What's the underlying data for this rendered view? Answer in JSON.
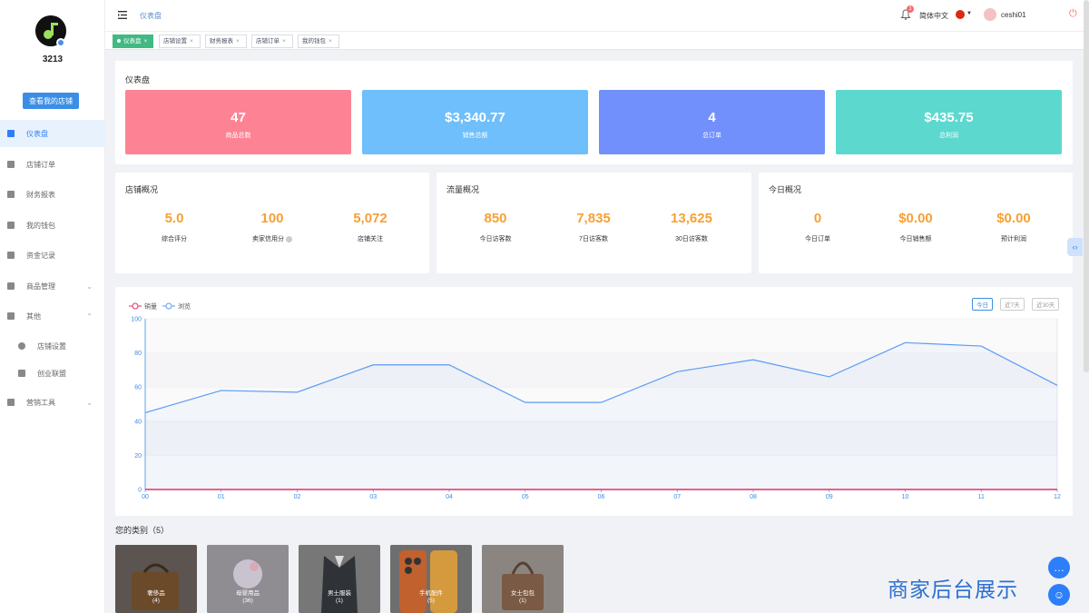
{
  "sidebar": {
    "shop_name": "3213",
    "view_shop_button": "查看我的店铺",
    "items": [
      {
        "label": "仪表盘",
        "icon": "dashboard-icon",
        "active": true
      },
      {
        "label": "店铺订单",
        "icon": "order-icon"
      },
      {
        "label": "财务报表",
        "icon": "report-icon"
      },
      {
        "label": "我的钱包",
        "icon": "wallet-icon"
      },
      {
        "label": "资金记录",
        "icon": "record-icon"
      },
      {
        "label": "商品管理",
        "icon": "goods-icon",
        "chevron": "⌄"
      },
      {
        "label": "其他",
        "icon": "grid-icon",
        "chevron": "⌃"
      },
      {
        "label": "店铺设置",
        "icon": "gear-icon"
      },
      {
        "label": "创业联盟",
        "icon": "flag-icon"
      },
      {
        "label": "营销工具",
        "icon": "bar-chart-icon",
        "chevron": "⌄"
      }
    ]
  },
  "header": {
    "breadcrumb": "仪表盘",
    "notification_count": "1",
    "language": "简体中文",
    "username": "ceshi01"
  },
  "tabs": [
    {
      "label": "仪表盘",
      "active": true
    },
    {
      "label": "店铺设置"
    },
    {
      "label": "财务报表"
    },
    {
      "label": "店铺订单"
    },
    {
      "label": "我的钱包"
    }
  ],
  "dashboard": {
    "title": "仪表盘",
    "stats": [
      {
        "value": "47",
        "label": "商品总数",
        "color": "#fd8394"
      },
      {
        "value": "$3,340.77",
        "label": "销售总额",
        "color": "#6ebffb"
      },
      {
        "value": "4",
        "label": "总订单",
        "color": "#7190fb"
      },
      {
        "value": "$435.75",
        "label": "总利润",
        "color": "#5dd8cf"
      }
    ]
  },
  "overview": [
    {
      "title": "店铺概况",
      "items": [
        {
          "value": "5.0",
          "label": "综合评分"
        },
        {
          "value": "100",
          "label": "卖家信用分"
        },
        {
          "value": "5,072",
          "label": "店铺关注"
        }
      ]
    },
    {
      "title": "流量概况",
      "items": [
        {
          "value": "850",
          "label": "今日访客数"
        },
        {
          "value": "7,835",
          "label": "7日访客数"
        },
        {
          "value": "13,625",
          "label": "30日访客数"
        }
      ]
    },
    {
      "title": "今日概况",
      "items": [
        {
          "value": "0",
          "label": "今日订单"
        },
        {
          "value": "$0.00",
          "label": "今日销售额"
        },
        {
          "value": "$0.00",
          "label": "预计利润"
        }
      ]
    }
  ],
  "chart_buttons": [
    "今日",
    "近7天",
    "近30天"
  ],
  "chart_data": {
    "type": "line",
    "x": [
      "00",
      "01",
      "02",
      "03",
      "04",
      "05",
      "06",
      "07",
      "08",
      "09",
      "10",
      "11",
      "12"
    ],
    "ylim": [
      0,
      100
    ],
    "yticks": [
      0,
      20,
      40,
      60,
      80,
      100
    ],
    "legend_position": "top-left",
    "grid": true,
    "series": [
      {
        "name": "销量",
        "color": "#e0306a",
        "values": [
          0,
          0,
          0,
          0,
          0,
          0,
          0,
          0,
          0,
          0,
          0,
          0,
          0
        ]
      },
      {
        "name": "浏览",
        "color": "#5b9bf5",
        "values": [
          45,
          58,
          57,
          73,
          73,
          51,
          51,
          69,
          76,
          66,
          86,
          84,
          61
        ]
      }
    ]
  },
  "categories": {
    "title": "您的类别（5）",
    "items": [
      {
        "name": "奢侈品",
        "count": "(4)"
      },
      {
        "name": "母婴用品",
        "count": "(36)"
      },
      {
        "name": "男士服装",
        "count": "(1)"
      },
      {
        "name": "手机配件",
        "count": "(5)"
      },
      {
        "name": "女士包包",
        "count": "(1)"
      }
    ]
  },
  "watermark": "商家后台展示"
}
